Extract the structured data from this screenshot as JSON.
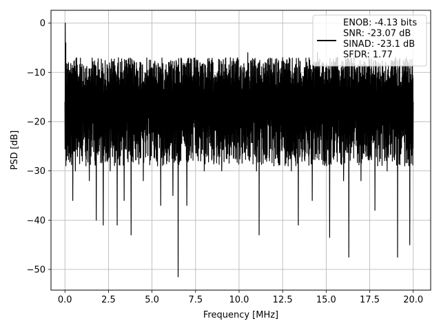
{
  "chart_data": {
    "type": "line",
    "title": "",
    "xlabel": "Frequency [MHz]",
    "ylabel": "PSD [dB]",
    "xlim": [
      -0.8,
      21.0
    ],
    "ylim": [
      -54.2,
      2.6
    ],
    "xticks": [
      0.0,
      2.5,
      5.0,
      7.5,
      10.0,
      12.5,
      15.0,
      17.5,
      20.0
    ],
    "xtick_labels": [
      "0.0",
      "2.5",
      "5.0",
      "7.5",
      "10.0",
      "12.5",
      "15.0",
      "17.5",
      "20.0"
    ],
    "yticks": [
      0,
      -10,
      -20,
      -30,
      -40,
      -50
    ],
    "ytick_labels": [
      "0",
      "−10",
      "−20",
      "−30",
      "−40",
      "−50"
    ],
    "grid": true,
    "legend": {
      "placement": "upper right",
      "entries": [
        "ENOB: -4.13 bits",
        "SNR: -23.07 dB",
        "SINAD: -23.1 dB",
        "SFDR: 1.77"
      ]
    },
    "series": [
      {
        "color": "#000000",
        "description": "dense noise-floor PSD trace, peak near 0 dB at DC",
        "x": [
          0.0,
          0.02,
          0.05,
          0.1,
          0.2,
          0.3,
          0.4,
          0.45,
          0.5,
          0.6,
          0.8,
          1.0,
          1.2,
          1.4,
          1.6,
          1.8,
          2.0,
          2.2,
          2.4,
          2.6,
          2.8,
          3.0,
          3.2,
          3.4,
          3.6,
          3.8,
          4.0,
          4.5,
          5.0,
          5.5,
          6.0,
          6.2,
          6.5,
          6.8,
          7.0,
          7.5,
          8.0,
          8.5,
          9.0,
          9.5,
          10.0,
          10.5,
          11.0,
          11.15,
          11.5,
          12.0,
          12.5,
          13.0,
          13.4,
          13.8,
          14.2,
          14.5,
          15.0,
          15.2,
          15.5,
          16.0,
          16.3,
          16.6,
          17.0,
          17.5,
          17.8,
          18.0,
          18.5,
          19.0,
          19.1,
          19.5,
          19.8,
          20.0
        ],
        "y": [
          -16,
          0,
          -4,
          -25,
          -8,
          -28,
          -12,
          -36,
          -10,
          -30,
          -11,
          -28,
          -14,
          -32,
          -10,
          -40,
          -12,
          -41,
          -14,
          -30,
          -9,
          -41,
          -10,
          -36,
          -12,
          -43,
          -8,
          -32,
          -9,
          -37,
          -8,
          -35,
          -51.5,
          -14,
          -37,
          -9,
          -30,
          -8,
          -30,
          -7,
          -25,
          -6,
          -30,
          -43,
          -8,
          -29,
          -7,
          -30,
          -41,
          -9,
          -36,
          -6,
          -28,
          -43.5,
          -8,
          -32,
          -47.5,
          -7,
          -32,
          -9,
          -38,
          -8,
          -30,
          -7,
          -47.5,
          -8,
          -45,
          -16
        ]
      }
    ]
  }
}
